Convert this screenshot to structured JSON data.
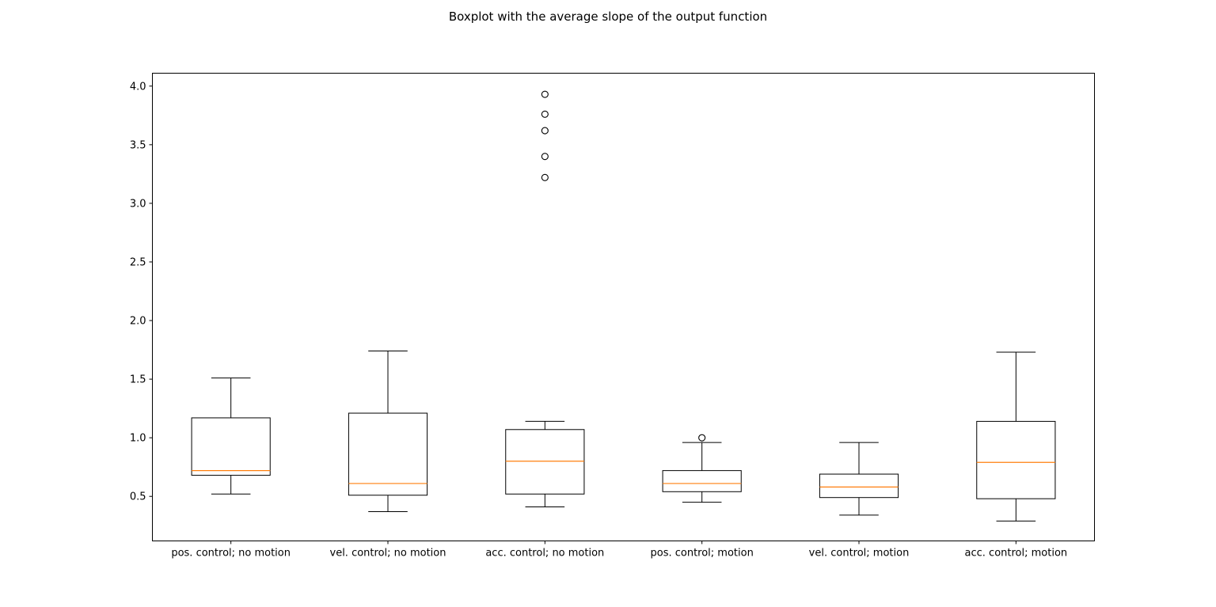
{
  "chart_data": {
    "type": "boxplot",
    "title": "Boxplot with the average slope of the output function",
    "xlabel": "",
    "ylabel": "",
    "ylim": [
      0.12,
      4.11
    ],
    "yticks": [
      0.5,
      1.0,
      1.5,
      2.0,
      2.5,
      3.0,
      3.5,
      4.0
    ],
    "ytick_labels": [
      "0.5",
      "1.0",
      "1.5",
      "2.0",
      "2.5",
      "3.0",
      "3.5",
      "4.0"
    ],
    "categories": [
      "pos. control; no motion",
      "vel. control; no motion",
      "acc. control; no motion",
      "pos. control; motion",
      "vel. control; motion",
      "acc. control; motion"
    ],
    "boxes": [
      {
        "whisker_low": 0.52,
        "q1": 0.68,
        "median": 0.72,
        "q3": 1.17,
        "whisker_high": 1.51,
        "outliers": []
      },
      {
        "whisker_low": 0.37,
        "q1": 0.51,
        "median": 0.61,
        "q3": 1.21,
        "whisker_high": 1.74,
        "outliers": []
      },
      {
        "whisker_low": 0.41,
        "q1": 0.52,
        "median": 0.8,
        "q3": 1.07,
        "whisker_high": 1.14,
        "outliers": [
          3.22,
          3.4,
          3.62,
          3.76,
          3.93
        ]
      },
      {
        "whisker_low": 0.45,
        "q1": 0.54,
        "median": 0.61,
        "q3": 0.72,
        "whisker_high": 0.96,
        "outliers": [
          1.0
        ]
      },
      {
        "whisker_low": 0.34,
        "q1": 0.49,
        "median": 0.58,
        "q3": 0.69,
        "whisker_high": 0.96,
        "outliers": []
      },
      {
        "whisker_low": 0.29,
        "q1": 0.48,
        "median": 0.79,
        "q3": 1.14,
        "whisker_high": 1.73,
        "outliers": []
      }
    ],
    "colors": {
      "box": "#000000",
      "median": "#ff7f0e",
      "outlier_edge": "#000000"
    },
    "grid": false,
    "legend": "none"
  }
}
